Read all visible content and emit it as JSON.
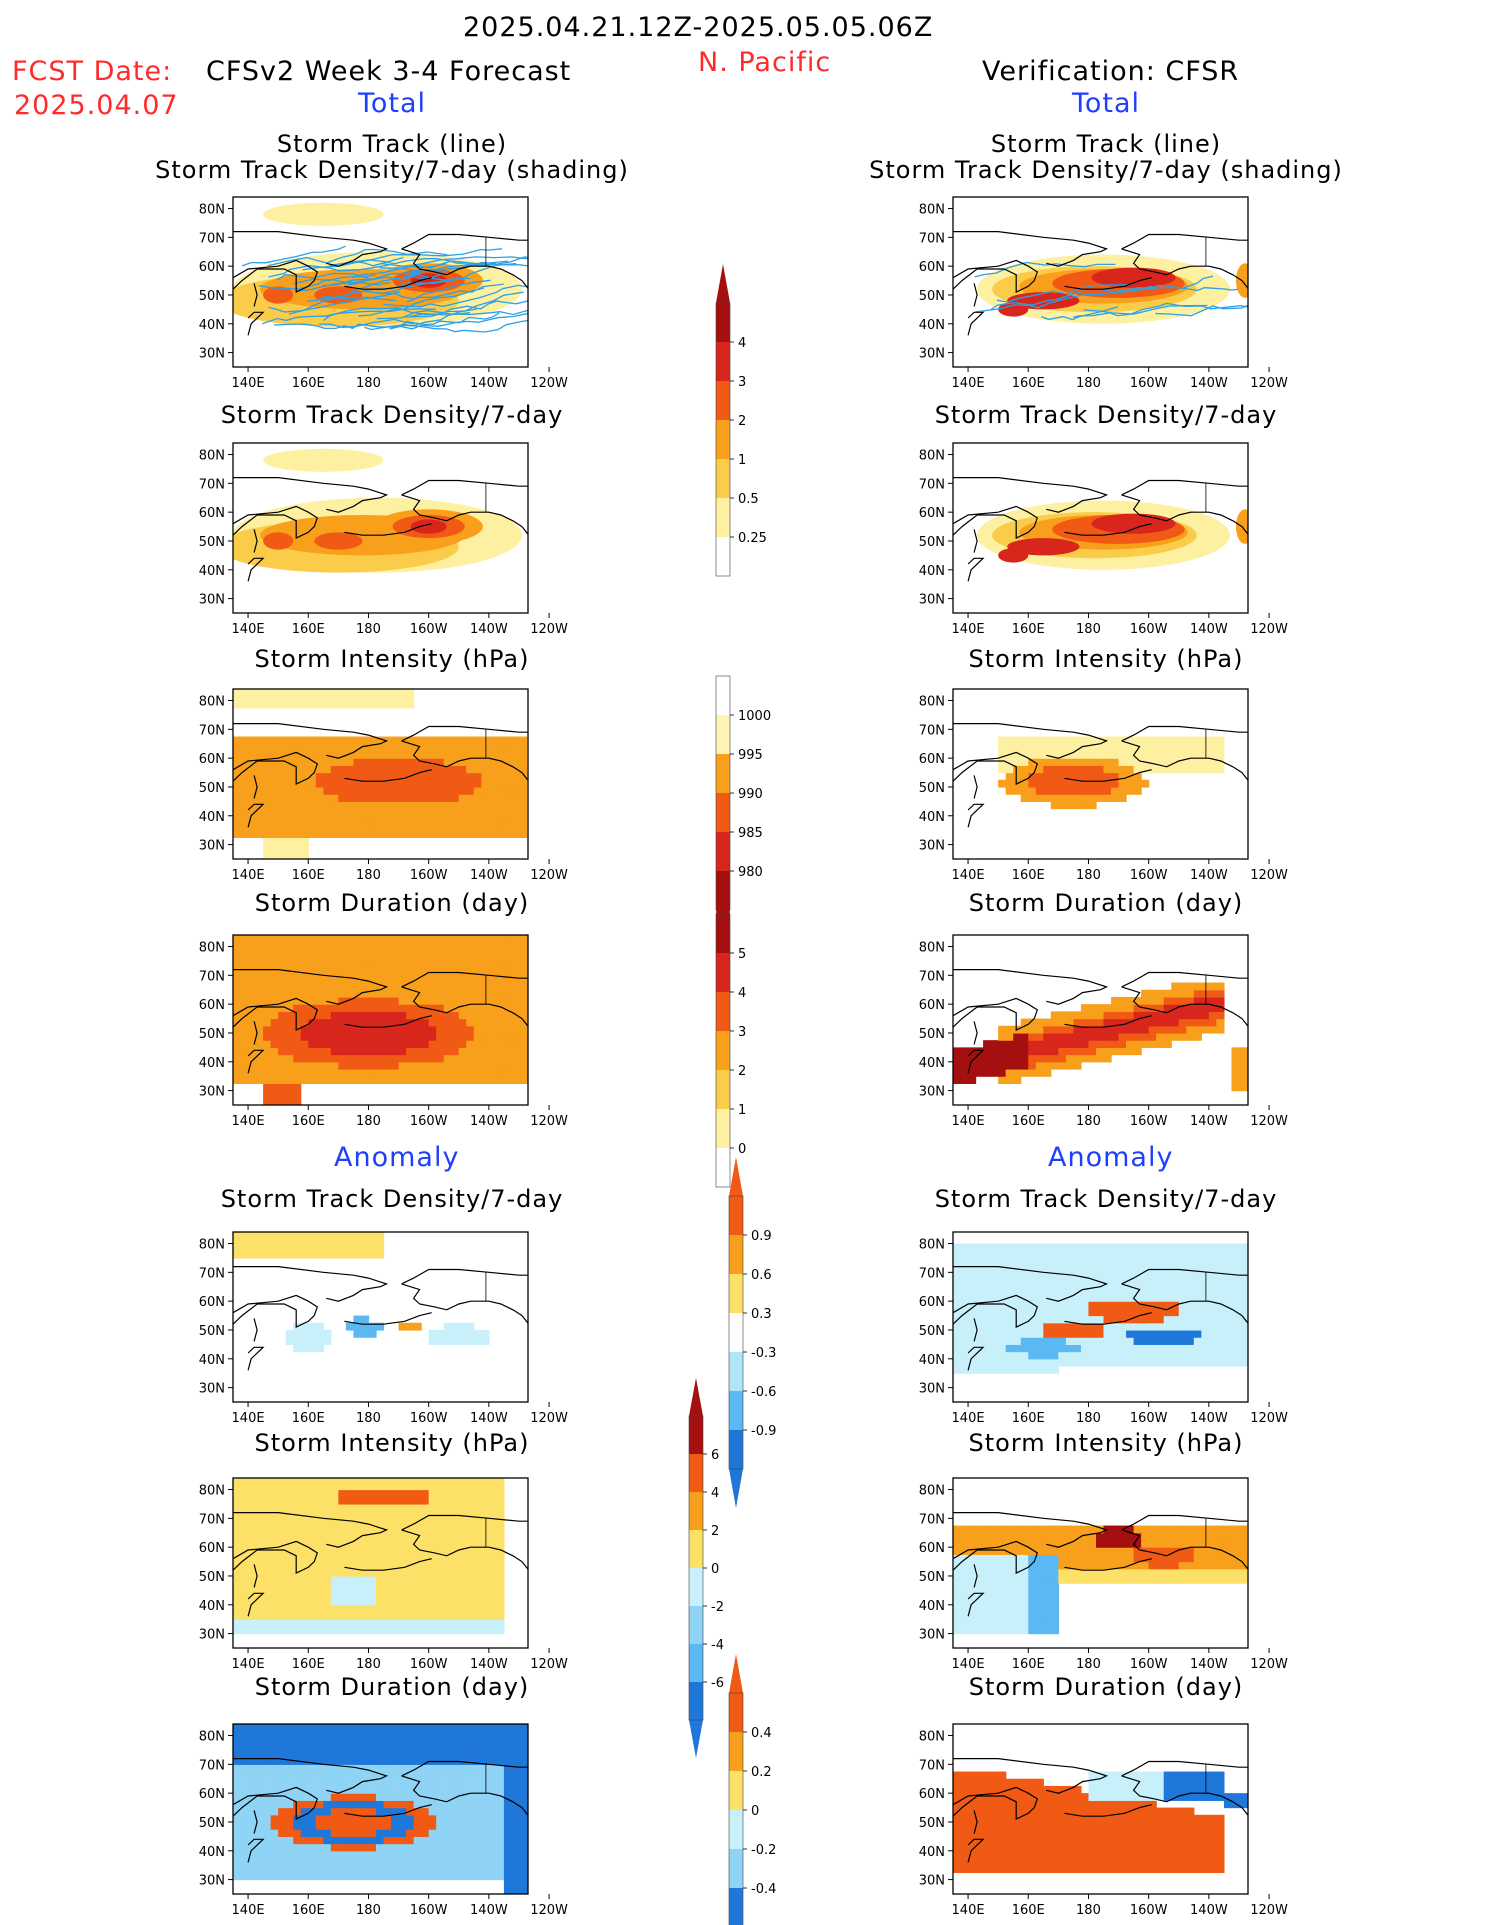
{
  "header": {
    "date_range": "2025.04.21.12Z-2025.05.05.06Z",
    "region": "N. Pacific",
    "fcst_label": "FCST Date:",
    "fcst_date": "2025.04.07",
    "model": "CFSv2 Week 3-4 Forecast",
    "verification": "Verification: CFSR",
    "total_left": "Total",
    "total_right": "Total",
    "anomaly_left": "Anomaly",
    "anomaly_right": "Anomaly"
  },
  "colors": {
    "title_red": "#ff2a2a",
    "title_blue": "#1f3fff",
    "track_line": "#2ea0e6"
  },
  "map_axes": {
    "lat_ticks": [
      "80N",
      "70N",
      "60N",
      "50N",
      "40N",
      "30N"
    ],
    "lon_ticks": [
      "140E",
      "160E",
      "180",
      "160W",
      "140W",
      "120W"
    ]
  },
  "panels": {
    "left": [
      {
        "title1": "Storm Track (line)",
        "title2": "Storm Track Density/7-day (shading)"
      },
      {
        "title1": "",
        "title2": "Storm Track Density/7-day"
      },
      {
        "title1": "",
        "title2": "Storm Intensity (hPa)"
      },
      {
        "title1": "",
        "title2": "Storm Duration (day)"
      },
      {
        "title1": "",
        "title2": "Storm Track Density/7-day"
      },
      {
        "title1": "",
        "title2": "Storm Intensity (hPa)"
      },
      {
        "title1": "",
        "title2": "Storm Duration (day)"
      }
    ],
    "right": [
      {
        "title1": "Storm Track (line)",
        "title2": "Storm Track Density/7-day (shading)"
      },
      {
        "title1": "",
        "title2": "Storm Track Density/7-day"
      },
      {
        "title1": "",
        "title2": "Storm Intensity (hPa)"
      },
      {
        "title1": "",
        "title2": "Storm Duration (day)"
      },
      {
        "title1": "",
        "title2": "Storm Track Density/7-day"
      },
      {
        "title1": "",
        "title2": "Storm Intensity (hPa)"
      },
      {
        "title1": "",
        "title2": "Storm Duration (day)"
      }
    ]
  },
  "chart_data": {
    "type": "heatmap",
    "colorbars": [
      {
        "name": "track_density",
        "labels": [
          "4",
          "3",
          "2",
          "1",
          "0.5",
          "0.25"
        ],
        "colors": [
          "#a50f0f",
          "#d9261c",
          "#f05a14",
          "#f8a01c",
          "#fbcc4a",
          "#fdf0a0"
        ],
        "ends": "top"
      },
      {
        "name": "intensity",
        "labels": [
          "1000",
          "995",
          "990",
          "985",
          "980"
        ],
        "colors": [
          "#fdf3b5",
          "#f8a01c",
          "#f05a14",
          "#d9261c",
          "#a50f0f"
        ],
        "ends": "bottom"
      },
      {
        "name": "duration",
        "labels": [
          "5",
          "4",
          "3",
          "2",
          "1",
          "0"
        ],
        "colors": [
          "#a50f0f",
          "#d9261c",
          "#f05a14",
          "#f8a01c",
          "#fbcc4a",
          "#fdf0a0"
        ],
        "ends": "top"
      },
      {
        "name": "density_anomaly",
        "labels": [
          "0.9",
          "0.6",
          "0.3",
          "-0.3",
          "-0.6",
          "-0.9"
        ],
        "colors": [
          "#f05a14",
          "#f8a01c",
          "#fde067",
          "#ffffff",
          "#aee6f7",
          "#5cb8f2",
          "#1f78d9"
        ],
        "ends": "both"
      },
      {
        "name": "intensity_anomaly",
        "labels": [
          "6",
          "4",
          "2",
          "0",
          "-2",
          "-4",
          "-6"
        ],
        "colors": [
          "#a50f0f",
          "#f05a14",
          "#f8a01c",
          "#fde067",
          "#c8f0fb",
          "#8fd3f5",
          "#5cb8f2",
          "#1f78d9"
        ],
        "ends": "both"
      },
      {
        "name": "duration_anomaly",
        "labels": [
          "0.4",
          "0.2",
          "0",
          "-0.2",
          "-0.4"
        ],
        "colors": [
          "#f05a14",
          "#f8a01c",
          "#fde067",
          "#c8f0fb",
          "#8fd3f5",
          "#1f78d9"
        ],
        "ends": "both"
      }
    ]
  }
}
